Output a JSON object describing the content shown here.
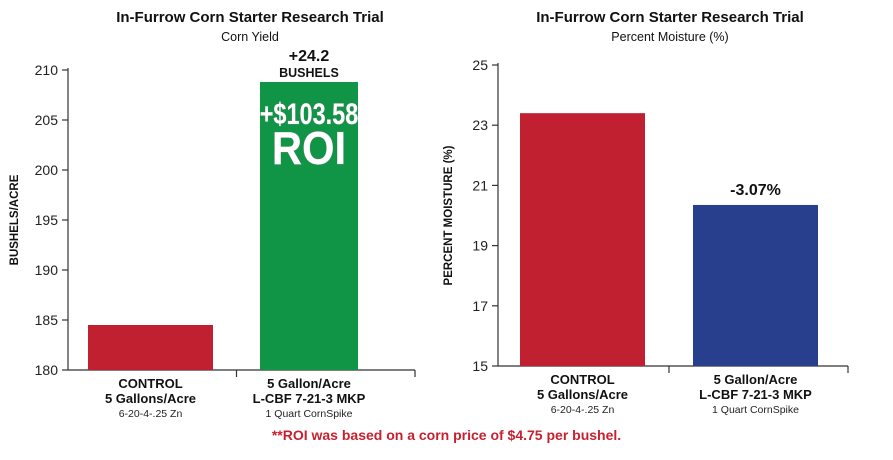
{
  "footnote": "**ROI was based on a corn price of $4.75 per bushel.",
  "colors": {
    "red": "#c12031",
    "green": "#109445",
    "blue": "#273f8c",
    "axis": "#333333"
  },
  "chart_data": [
    {
      "type": "bar",
      "title": "In-Furrow Corn Starter Research Trial",
      "subtitle": "Corn Yield",
      "ylabel": "BUSHELS/ACRE",
      "ylim": [
        180,
        210
      ],
      "yticks": [
        180,
        185,
        190,
        195,
        200,
        205,
        210
      ],
      "categories": [
        {
          "lines": [
            "CONTROL",
            "5 Gallons/Acre"
          ],
          "sub": "6-20-4-.25 Zn"
        },
        {
          "lines": [
            "5 Gallon/Acre",
            "L-CBF 7-21-3 MKP"
          ],
          "sub": "1 Quart CornSpike"
        }
      ],
      "values": [
        184.5,
        208.8
      ],
      "bar_colors": [
        "#c12031",
        "#109445"
      ],
      "annotation": {
        "line1": "+24.2",
        "line2": "BUSHELS"
      },
      "inbar_label": {
        "line1": "+$103.58",
        "line2": "ROI"
      }
    },
    {
      "type": "bar",
      "title": "In-Furrow Corn Starter Research Trial",
      "subtitle": "Percent Moisture (%)",
      "ylabel": "PERCENT MOISTURE (%)",
      "ylim": [
        15,
        25
      ],
      "yticks": [
        15,
        17,
        19,
        21,
        23,
        25
      ],
      "categories": [
        {
          "lines": [
            "CONTROL",
            "5 Gallons/Acre"
          ],
          "sub": "6-20-4-.25 Zn"
        },
        {
          "lines": [
            "5 Gallon/Acre",
            "L-CBF 7-21-3 MKP"
          ],
          "sub": "1 Quart CornSpike"
        }
      ],
      "values": [
        23.4,
        20.35
      ],
      "bar_colors": [
        "#c12031",
        "#273f8c"
      ],
      "annotation": {
        "line1": "-3.07%"
      }
    }
  ]
}
